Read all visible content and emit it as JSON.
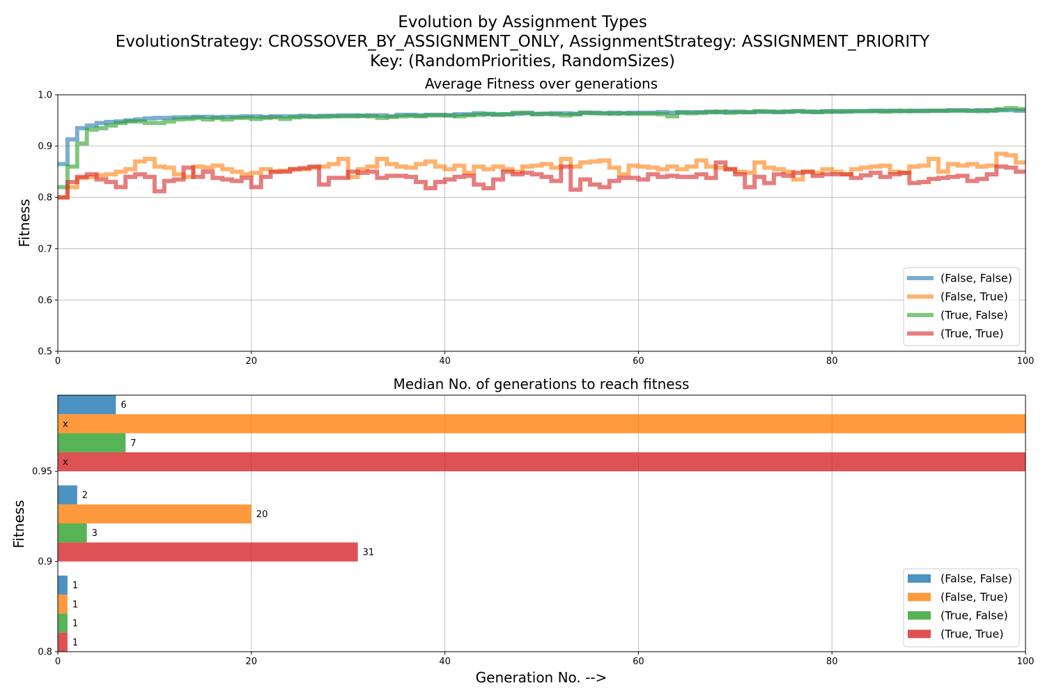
{
  "figure": {
    "title_lines": [
      "Evolution by Assignment Types",
      "EvolutionStrategy: CROSSOVER_BY_ASSIGNMENT_ONLY, AssignmentStrategy: ASSIGNMENT_PRIORITY",
      "Key: (RandomPriorities, RandomSizes)"
    ]
  },
  "series_names": [
    "(False, False)",
    "(False, True)",
    "(True, False)",
    "(True, True)"
  ],
  "colors": {
    "blue": "#1f77b4",
    "orange": "#ff7f0e",
    "green": "#2ca02c",
    "red": "#d62728",
    "grid": "#b0b0b0"
  },
  "chart_data": [
    {
      "type": "line",
      "title": "Average Fitness over generations",
      "xlabel": "",
      "ylabel": "Fitness",
      "xlim": [
        0,
        100
      ],
      "ylim": [
        0.5,
        1.0
      ],
      "xticks": [
        "0",
        "20",
        "40",
        "60",
        "80",
        "100"
      ],
      "yticks": [
        "0.5",
        "0.6",
        "0.7",
        "0.8",
        "0.9",
        "1.0"
      ],
      "grid": true,
      "legend": "lower right",
      "step": "post",
      "x": [
        0,
        1,
        2,
        3,
        4,
        5,
        6,
        7,
        8,
        9,
        10,
        11,
        12,
        13,
        14,
        15,
        16,
        17,
        18,
        19,
        20,
        21,
        22,
        23,
        24,
        25,
        26,
        27,
        28,
        29,
        30,
        31,
        32,
        33,
        34,
        35,
        36,
        37,
        38,
        39,
        40,
        41,
        42,
        43,
        44,
        45,
        46,
        47,
        48,
        49,
        50,
        51,
        52,
        53,
        54,
        55,
        56,
        57,
        58,
        59,
        60,
        61,
        62,
        63,
        64,
        65,
        66,
        67,
        68,
        69,
        70,
        71,
        72,
        73,
        74,
        75,
        76,
        77,
        78,
        79,
        80,
        81,
        82,
        83,
        84,
        85,
        86,
        87,
        88,
        89,
        90,
        91,
        92,
        93,
        94,
        95,
        96,
        97,
        98,
        99,
        100
      ],
      "series": [
        {
          "name": "(False, False)",
          "color": "#1f77b4",
          "values": [
            0.865,
            0.913,
            0.935,
            0.94,
            0.945,
            0.947,
            0.948,
            0.95,
            0.952,
            0.954,
            0.955,
            0.955,
            0.956,
            0.956,
            0.957,
            0.957,
            0.956,
            0.957,
            0.957,
            0.958,
            0.958,
            0.957,
            0.958,
            0.958,
            0.958,
            0.959,
            0.958,
            0.959,
            0.959,
            0.96,
            0.96,
            0.959,
            0.96,
            0.96,
            0.958,
            0.961,
            0.961,
            0.96,
            0.961,
            0.961,
            0.96,
            0.962,
            0.962,
            0.964,
            0.963,
            0.962,
            0.962,
            0.963,
            0.964,
            0.963,
            0.963,
            0.964,
            0.964,
            0.963,
            0.965,
            0.965,
            0.964,
            0.965,
            0.964,
            0.965,
            0.965,
            0.965,
            0.966,
            0.965,
            0.966,
            0.966,
            0.966,
            0.967,
            0.966,
            0.967,
            0.967,
            0.966,
            0.967,
            0.967,
            0.966,
            0.967,
            0.968,
            0.967,
            0.967,
            0.968,
            0.967,
            0.968,
            0.968,
            0.968,
            0.969,
            0.969,
            0.969,
            0.968,
            0.969,
            0.969,
            0.969,
            0.969,
            0.97,
            0.97,
            0.969,
            0.97,
            0.969,
            0.97,
            0.97,
            0.969,
            0.969
          ]
        },
        {
          "name": "(False, True)",
          "color": "#ff7f0e",
          "values": [
            0.8,
            0.82,
            0.838,
            0.84,
            0.843,
            0.845,
            0.85,
            0.855,
            0.87,
            0.875,
            0.86,
            0.858,
            0.845,
            0.84,
            0.86,
            0.858,
            0.862,
            0.855,
            0.85,
            0.845,
            0.848,
            0.855,
            0.85,
            0.852,
            0.855,
            0.855,
            0.858,
            0.86,
            0.865,
            0.875,
            0.84,
            0.855,
            0.86,
            0.875,
            0.865,
            0.86,
            0.858,
            0.865,
            0.87,
            0.86,
            0.855,
            0.862,
            0.848,
            0.86,
            0.855,
            0.86,
            0.855,
            0.85,
            0.86,
            0.862,
            0.865,
            0.858,
            0.875,
            0.86,
            0.868,
            0.87,
            0.872,
            0.858,
            0.845,
            0.862,
            0.86,
            0.858,
            0.855,
            0.86,
            0.855,
            0.86,
            0.872,
            0.86,
            0.858,
            0.855,
            0.85,
            0.848,
            0.868,
            0.858,
            0.855,
            0.85,
            0.835,
            0.85,
            0.848,
            0.855,
            0.85,
            0.845,
            0.855,
            0.858,
            0.86,
            0.862,
            0.85,
            0.848,
            0.86,
            0.862,
            0.875,
            0.85,
            0.865,
            0.862,
            0.865,
            0.86,
            0.862,
            0.885,
            0.882,
            0.868,
            0.865
          ]
        },
        {
          "name": "(True, False)",
          "color": "#2ca02c",
          "values": [
            0.82,
            0.86,
            0.905,
            0.932,
            0.935,
            0.94,
            0.945,
            0.948,
            0.948,
            0.945,
            0.945,
            0.948,
            0.952,
            0.953,
            0.955,
            0.952,
            0.955,
            0.952,
            0.955,
            0.955,
            0.953,
            0.955,
            0.956,
            0.953,
            0.956,
            0.957,
            0.957,
            0.957,
            0.958,
            0.958,
            0.958,
            0.959,
            0.958,
            0.955,
            0.957,
            0.958,
            0.959,
            0.958,
            0.96,
            0.96,
            0.96,
            0.958,
            0.96,
            0.961,
            0.962,
            0.961,
            0.962,
            0.965,
            0.965,
            0.962,
            0.963,
            0.962,
            0.96,
            0.962,
            0.965,
            0.964,
            0.964,
            0.963,
            0.964,
            0.963,
            0.963,
            0.963,
            0.962,
            0.958,
            0.965,
            0.964,
            0.965,
            0.966,
            0.967,
            0.965,
            0.966,
            0.966,
            0.968,
            0.967,
            0.967,
            0.967,
            0.968,
            0.967,
            0.966,
            0.967,
            0.968,
            0.967,
            0.968,
            0.968,
            0.968,
            0.967,
            0.968,
            0.969,
            0.968,
            0.968,
            0.969,
            0.969,
            0.969,
            0.969,
            0.969,
            0.968,
            0.97,
            0.972,
            0.974,
            0.972,
            0.972
          ]
        },
        {
          "name": "(True, True)",
          "color": "#d62728",
          "values": [
            0.8,
            0.83,
            0.84,
            0.845,
            0.835,
            0.83,
            0.82,
            0.84,
            0.845,
            0.84,
            0.812,
            0.832,
            0.835,
            0.858,
            0.84,
            0.85,
            0.838,
            0.835,
            0.832,
            0.838,
            0.82,
            0.84,
            0.85,
            0.85,
            0.855,
            0.857,
            0.86,
            0.825,
            0.838,
            0.838,
            0.85,
            0.848,
            0.85,
            0.838,
            0.842,
            0.842,
            0.84,
            0.83,
            0.818,
            0.83,
            0.835,
            0.84,
            0.842,
            0.825,
            0.818,
            0.835,
            0.85,
            0.845,
            0.848,
            0.845,
            0.84,
            0.832,
            0.86,
            0.815,
            0.835,
            0.825,
            0.82,
            0.832,
            0.838,
            0.838,
            0.835,
            0.845,
            0.84,
            0.842,
            0.84,
            0.84,
            0.845,
            0.838,
            0.868,
            0.855,
            0.845,
            0.82,
            0.84,
            0.828,
            0.845,
            0.842,
            0.848,
            0.85,
            0.842,
            0.845,
            0.845,
            0.845,
            0.838,
            0.843,
            0.848,
            0.84,
            0.845,
            0.848,
            0.828,
            0.83,
            0.836,
            0.838,
            0.84,
            0.842,
            0.832,
            0.836,
            0.845,
            0.86,
            0.858,
            0.85,
            0.852
          ]
        }
      ]
    },
    {
      "type": "bar",
      "orientation": "horizontal",
      "title": "Median No. of generations to reach fitness",
      "xlabel": "Generation No. -->",
      "ylabel": "Fitness",
      "xlim": [
        0,
        100
      ],
      "xticks": [
        "0",
        "20",
        "40",
        "60",
        "80",
        "100"
      ],
      "categories": [
        "0.8",
        "0.9",
        "0.95"
      ],
      "grid": true,
      "legend": "lower right",
      "series": [
        {
          "name": "(False, False)",
          "color": "#1f77b4",
          "values": [
            1,
            2,
            6
          ],
          "labels": [
            "1",
            "2",
            "6"
          ]
        },
        {
          "name": "(False, True)",
          "color": "#ff7f0e",
          "values": [
            1,
            20,
            100
          ],
          "labels": [
            "1",
            "20",
            "x"
          ]
        },
        {
          "name": "(True, False)",
          "color": "#2ca02c",
          "values": [
            1,
            3,
            7
          ],
          "labels": [
            "1",
            "3",
            "7"
          ]
        },
        {
          "name": "(True, True)",
          "color": "#d62728",
          "values": [
            1,
            31,
            100
          ],
          "labels": [
            "1",
            "31",
            "x"
          ]
        }
      ]
    }
  ]
}
